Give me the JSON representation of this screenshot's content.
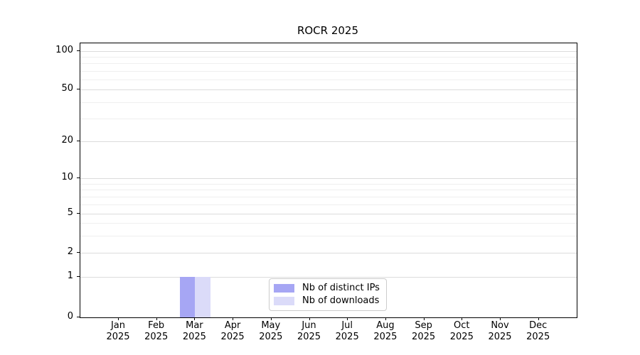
{
  "chart_data": {
    "type": "bar",
    "title": "ROCR 2025",
    "categories": [
      "Jan",
      "Feb",
      "Mar",
      "Apr",
      "May",
      "Jun",
      "Jul",
      "Aug",
      "Sep",
      "Oct",
      "Nov",
      "Dec"
    ],
    "x_tick_year_line": "2025",
    "series": [
      {
        "name": "Nb of distinct IPs",
        "color": "#a6a6f4",
        "values": [
          0,
          0,
          1,
          0,
          0,
          0,
          0,
          0,
          0,
          0,
          0,
          0
        ]
      },
      {
        "name": "Nb of downloads",
        "color": "#dbdbf9",
        "values": [
          0,
          0,
          1,
          0,
          0,
          0,
          0,
          0,
          0,
          0,
          0,
          0
        ]
      }
    ],
    "y_ticks": [
      0,
      1,
      2,
      5,
      10,
      20,
      50,
      100
    ],
    "y_minor_ticks": [
      3,
      4,
      6,
      7,
      8,
      9,
      30,
      40,
      60,
      70,
      80,
      90
    ],
    "ylim": [
      0,
      115
    ],
    "yscale": "symlog",
    "grid": true,
    "legend": {
      "position": "lower center"
    }
  }
}
